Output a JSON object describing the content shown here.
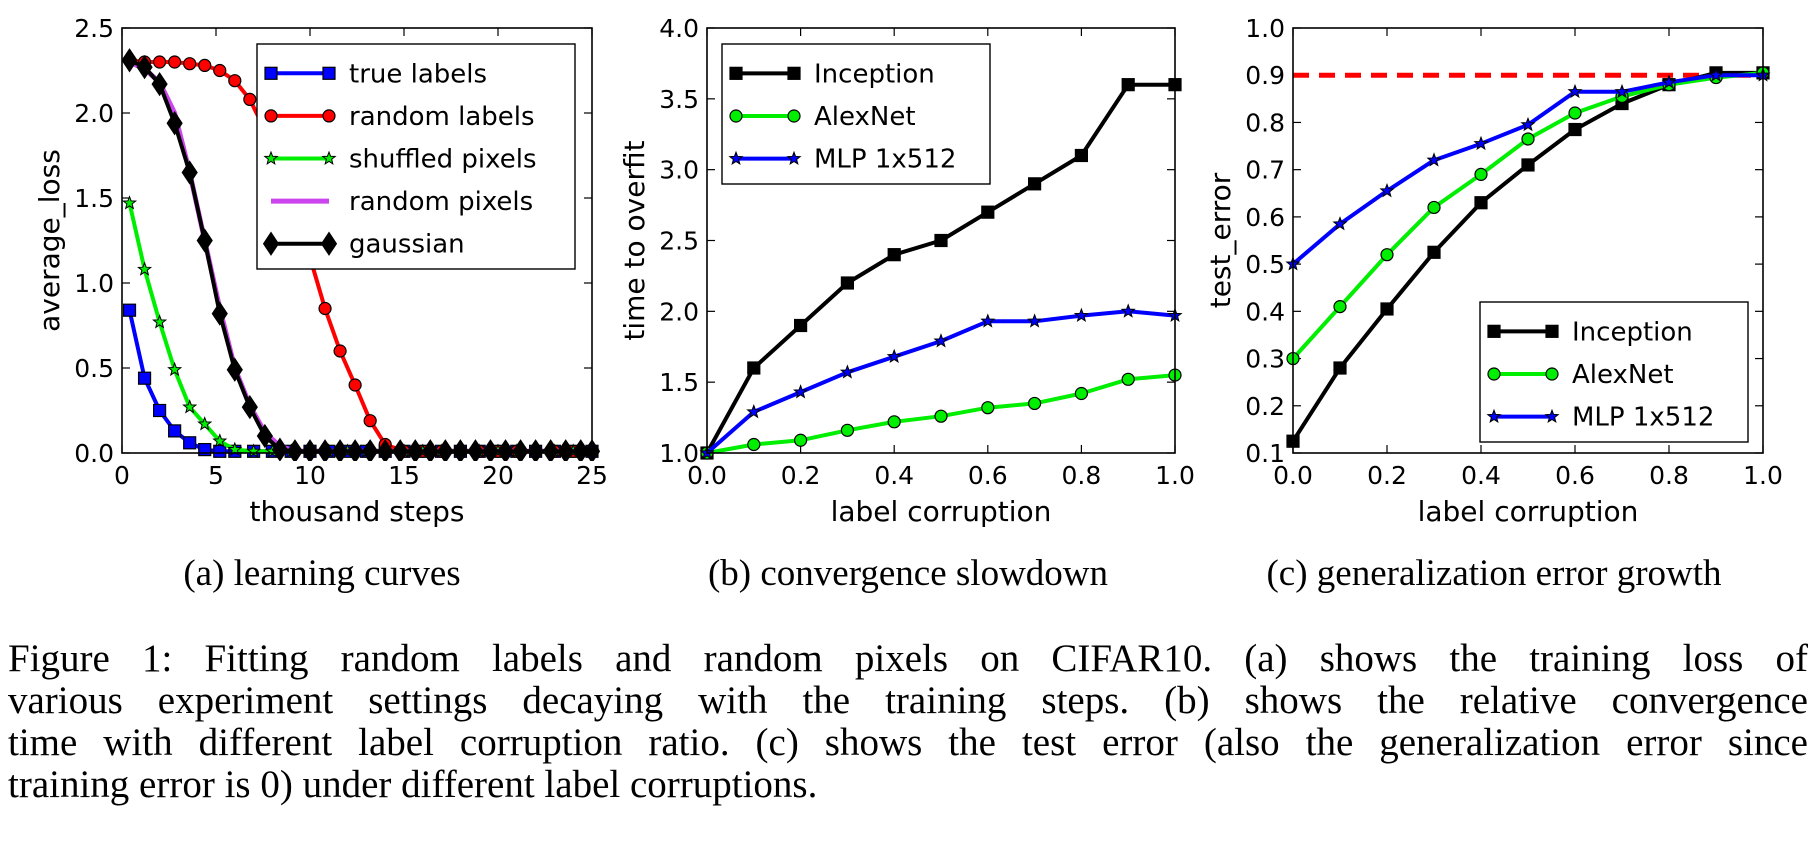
{
  "chart_data": [
    {
      "type": "line",
      "subcaption": "(a) learning curves",
      "xlabel": "thousand steps",
      "ylabel": "average_loss",
      "xlim": [
        0,
        25
      ],
      "ylim": [
        0,
        2.5
      ],
      "xticks": [
        "0",
        "5",
        "10",
        "15",
        "20",
        "25"
      ],
      "yticks": [
        "0.0",
        "0.5",
        "1.0",
        "1.5",
        "2.0",
        "2.5"
      ],
      "legend_position": "top-right",
      "series": [
        {
          "name": "true labels",
          "color": "#0000ff",
          "marker": "square",
          "x": [
            0.4,
            1.2,
            2.0,
            2.8,
            3.6,
            4.4,
            5.2,
            6,
            7,
            8,
            9,
            10,
            11,
            12,
            13,
            14,
            15,
            16,
            17,
            18,
            19,
            20,
            21,
            22,
            23,
            24,
            25
          ],
          "y": [
            0.84,
            0.44,
            0.25,
            0.13,
            0.06,
            0.02,
            0.01,
            0.01,
            0.01,
            0.01,
            0.01,
            0.01,
            0.01,
            0.01,
            0.01,
            0.01,
            0.01,
            0.01,
            0.01,
            0.01,
            0.01,
            0.01,
            0.01,
            0.01,
            0.01,
            0.01,
            0.01
          ]
        },
        {
          "name": "random labels",
          "color": "#ff0000",
          "marker": "circle",
          "x": [
            0.4,
            1.2,
            2.0,
            2.8,
            3.6,
            4.4,
            5.2,
            6.0,
            6.8,
            7.6,
            8.4,
            9.2,
            10.0,
            10.8,
            11.6,
            12.4,
            13.2,
            14.0,
            15,
            16,
            17,
            18,
            19,
            20,
            21,
            22,
            23,
            24,
            25
          ],
          "y": [
            2.31,
            2.3,
            2.3,
            2.3,
            2.29,
            2.28,
            2.25,
            2.19,
            2.08,
            1.9,
            1.68,
            1.45,
            1.15,
            0.85,
            0.6,
            0.4,
            0.19,
            0.05,
            0.01,
            0.01,
            0.01,
            0.01,
            0.01,
            0.01,
            0.01,
            0.01,
            0.01,
            0.01,
            0.01
          ]
        },
        {
          "name": "shuffled pixels",
          "color": "#00ee00",
          "marker": "star",
          "x": [
            0.4,
            1.2,
            2.0,
            2.8,
            3.6,
            4.4,
            5.2,
            6.0,
            7,
            8,
            9,
            10,
            11,
            12,
            13,
            14,
            15,
            16,
            17,
            18,
            19,
            20,
            21,
            22,
            23,
            24,
            25
          ],
          "y": [
            1.47,
            1.08,
            0.77,
            0.49,
            0.27,
            0.17,
            0.07,
            0.02,
            0.01,
            0.01,
            0.01,
            0.01,
            0.01,
            0.01,
            0.01,
            0.01,
            0.01,
            0.01,
            0.01,
            0.01,
            0.01,
            0.01,
            0.01,
            0.01,
            0.01,
            0.01,
            0.01
          ]
        },
        {
          "name": "random pixels",
          "color": "#cc44ee",
          "marker": "none",
          "x": [
            0.4,
            1.2,
            2.0,
            2.8,
            3.6,
            4.4,
            5.2,
            6.0,
            6.8,
            7.6,
            8.4,
            9.2,
            10,
            12,
            14,
            16,
            18,
            20,
            22,
            25
          ],
          "y": [
            2.3,
            2.26,
            2.18,
            2.0,
            1.65,
            1.25,
            0.85,
            0.5,
            0.28,
            0.12,
            0.04,
            0.01,
            0.01,
            0.01,
            0.01,
            0.01,
            0.01,
            0.01,
            0.01,
            0.01
          ]
        },
        {
          "name": "gaussian",
          "color": "#000000",
          "marker": "diamond",
          "x": [
            0.4,
            1.2,
            2.0,
            2.8,
            3.6,
            4.4,
            5.2,
            6.0,
            6.8,
            7.6,
            8.4,
            9.2,
            10.0,
            10.8,
            11.6,
            12.4,
            13.2,
            14.0,
            14.8,
            15.6,
            16.4,
            17.2,
            18.0,
            18.8,
            19.6,
            20.4,
            21.2,
            22.0,
            22.8,
            23.6,
            24.4,
            25.0
          ],
          "y": [
            2.31,
            2.27,
            2.17,
            1.94,
            1.65,
            1.25,
            0.82,
            0.49,
            0.27,
            0.1,
            0.02,
            0.01,
            0.01,
            0.01,
            0.01,
            0.01,
            0.01,
            0.01,
            0.01,
            0.01,
            0.01,
            0.01,
            0.01,
            0.01,
            0.01,
            0.01,
            0.01,
            0.01,
            0.01,
            0.01,
            0.01,
            0.01
          ]
        }
      ]
    },
    {
      "type": "line",
      "subcaption": "(b) convergence slowdown",
      "xlabel": "label corruption",
      "ylabel": "time to overfit",
      "xlim": [
        0,
        1
      ],
      "ylim": [
        1,
        4
      ],
      "xticks": [
        "0.0",
        "0.2",
        "0.4",
        "0.6",
        "0.8",
        "1.0"
      ],
      "yticks": [
        "1.0",
        "1.5",
        "2.0",
        "2.5",
        "3.0",
        "3.5",
        "4.0"
      ],
      "legend_position": "top-left",
      "series": [
        {
          "name": "Inception",
          "color": "#000000",
          "marker": "square",
          "x": [
            0,
            0.1,
            0.2,
            0.3,
            0.4,
            0.5,
            0.6,
            0.7,
            0.8,
            0.9,
            1.0
          ],
          "y": [
            1.0,
            1.6,
            1.9,
            2.2,
            2.4,
            2.5,
            2.7,
            2.9,
            3.1,
            3.6,
            3.6
          ]
        },
        {
          "name": "AlexNet",
          "color": "#00ee00",
          "marker": "circle",
          "x": [
            0,
            0.1,
            0.2,
            0.3,
            0.4,
            0.5,
            0.6,
            0.7,
            0.8,
            0.9,
            1.0
          ],
          "y": [
            1.0,
            1.06,
            1.09,
            1.16,
            1.22,
            1.26,
            1.32,
            1.35,
            1.42,
            1.52,
            1.55
          ]
        },
        {
          "name": "MLP 1x512",
          "color": "#0000ff",
          "marker": "star",
          "x": [
            0,
            0.1,
            0.2,
            0.3,
            0.4,
            0.5,
            0.6,
            0.7,
            0.8,
            0.9,
            1.0
          ],
          "y": [
            1.0,
            1.29,
            1.43,
            1.57,
            1.68,
            1.79,
            1.93,
            1.93,
            1.97,
            2.0,
            1.97
          ]
        }
      ]
    },
    {
      "type": "line",
      "subcaption": "(c) generalization error growth",
      "xlabel": "label corruption",
      "ylabel": "test_error",
      "xlim": [
        0,
        1
      ],
      "ylim": [
        0.1,
        1.0
      ],
      "xticks": [
        "0.0",
        "0.2",
        "0.4",
        "0.6",
        "0.8",
        "1.0"
      ],
      "yticks": [
        "0.1",
        "0.2",
        "0.3",
        "0.4",
        "0.5",
        "0.6",
        "0.7",
        "0.8",
        "0.9",
        "1.0"
      ],
      "legend_position": "bottom-right",
      "reference_line": {
        "y": 0.9,
        "color": "#ff0000",
        "style": "dashed"
      },
      "series": [
        {
          "name": "Inception",
          "color": "#000000",
          "marker": "square",
          "x": [
            0,
            0.1,
            0.2,
            0.3,
            0.4,
            0.5,
            0.6,
            0.7,
            0.8,
            0.9,
            1.0
          ],
          "y": [
            0.125,
            0.28,
            0.405,
            0.525,
            0.63,
            0.71,
            0.785,
            0.84,
            0.88,
            0.905,
            0.905
          ]
        },
        {
          "name": "AlexNet",
          "color": "#00ee00",
          "marker": "circle",
          "x": [
            0,
            0.1,
            0.2,
            0.3,
            0.4,
            0.5,
            0.6,
            0.7,
            0.8,
            0.9,
            1.0
          ],
          "y": [
            0.3,
            0.41,
            0.52,
            0.62,
            0.69,
            0.765,
            0.82,
            0.855,
            0.88,
            0.895,
            0.905
          ]
        },
        {
          "name": "MLP 1x512",
          "color": "#0000ff",
          "marker": "star",
          "x": [
            0,
            0.1,
            0.2,
            0.3,
            0.4,
            0.5,
            0.6,
            0.7,
            0.8,
            0.9,
            1.0
          ],
          "y": [
            0.5,
            0.585,
            0.655,
            0.72,
            0.755,
            0.795,
            0.865,
            0.865,
            0.885,
            0.9,
            0.9
          ]
        }
      ]
    }
  ],
  "caption": {
    "lines": [
      "Figure 1:  Fitting random labels and random pixels on CIFAR10.  (a) shows the training loss of",
      "various experiment settings decaying with the training steps.  (b) shows the relative convergence",
      "time with different label corruption ratio. (c) shows the test error (also the generalization error since",
      "training error is 0) under different label corruptions."
    ]
  }
}
